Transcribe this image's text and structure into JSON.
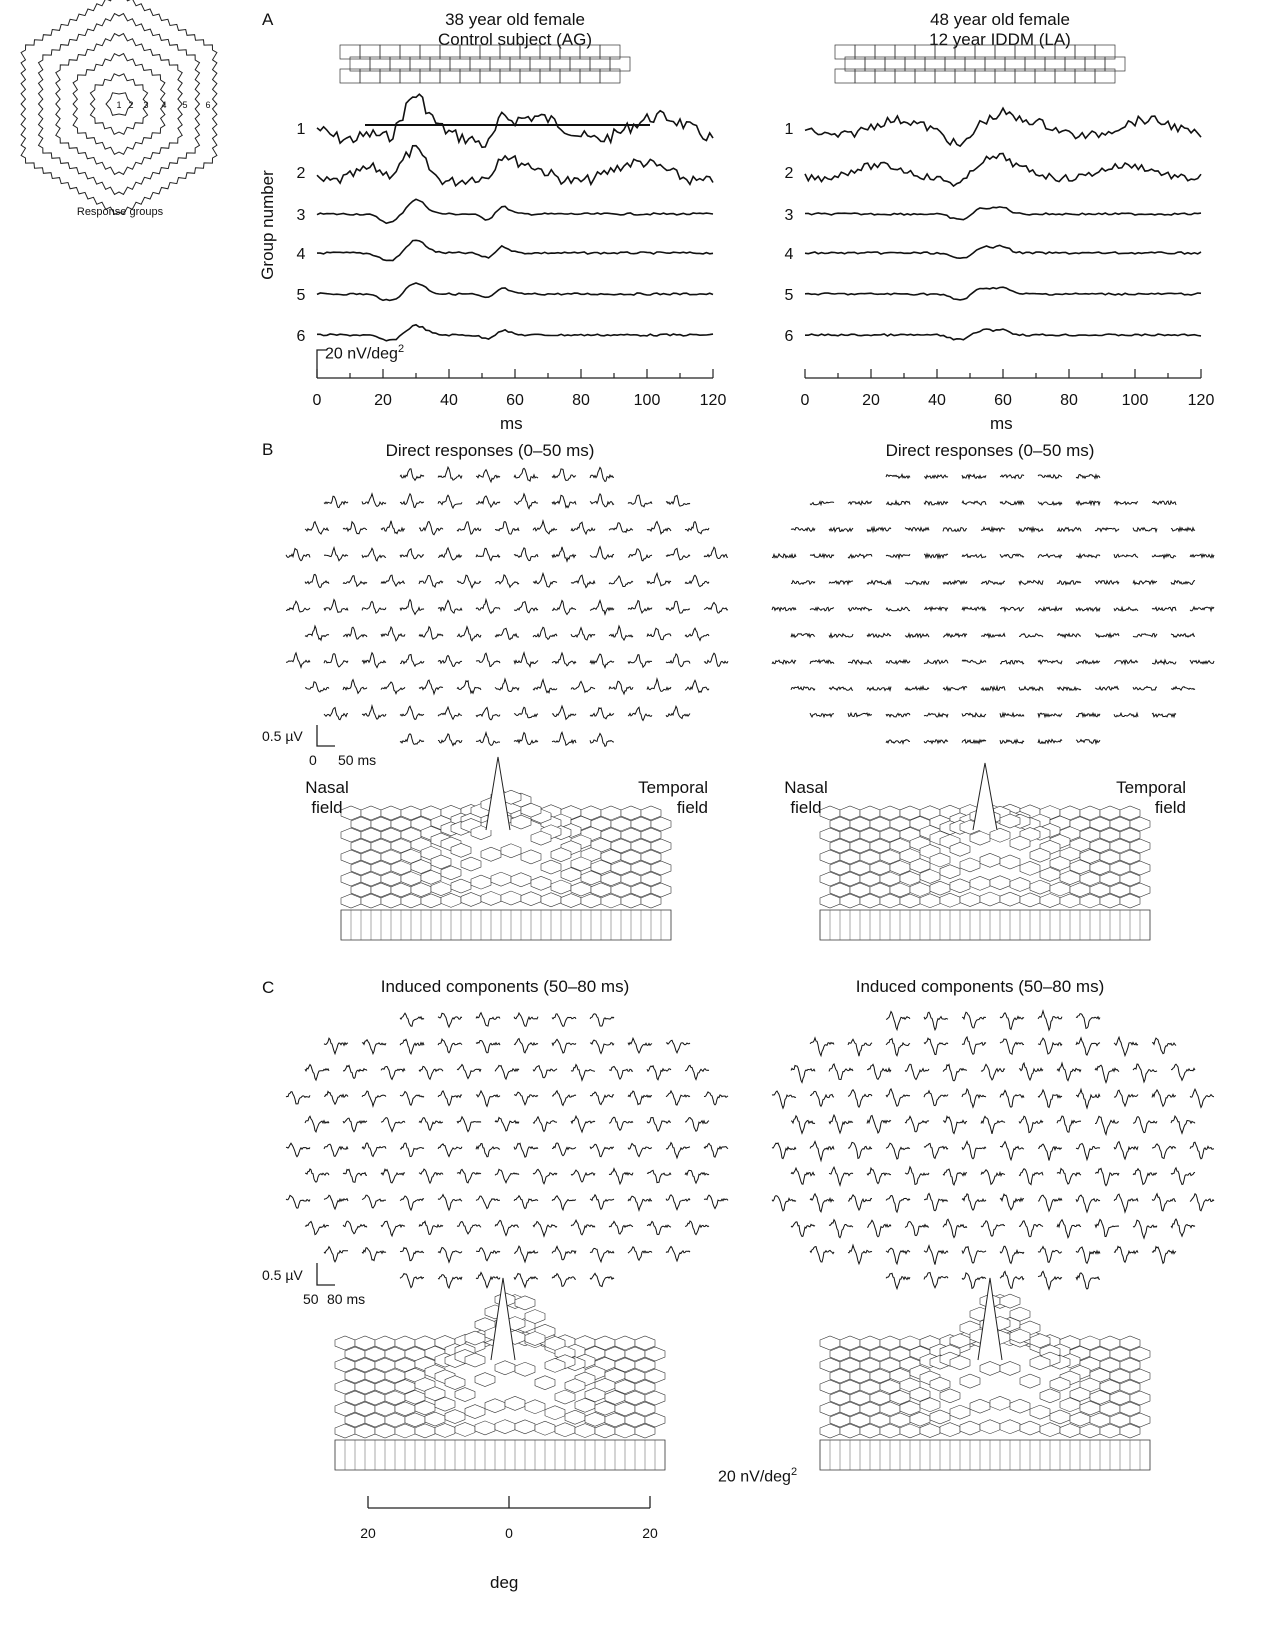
{
  "inset": {
    "label": "Response groups",
    "ring_numbers": [
      "1",
      "2",
      "3",
      "4",
      "5",
      "6"
    ]
  },
  "panels": {
    "A": {
      "letter": "A",
      "ylabel": "Group number",
      "xlabel": "ms",
      "scale_label": "20 nV/deg",
      "scale_sup": "2",
      "left": {
        "title1": "38 year old female",
        "title2": "Control subject (AG)"
      },
      "right": {
        "title1": "48 year old female",
        "title2": "12 year IDDM (LA)"
      },
      "group_labels": [
        "1",
        "2",
        "3",
        "4",
        "5",
        "6"
      ],
      "ticks": [
        "0",
        "20",
        "40",
        "60",
        "80",
        "100",
        "120"
      ]
    },
    "B": {
      "letter": "B",
      "title": "Direct responses (0–50 ms)",
      "scale_v": "0.5 µV",
      "scale_t0": "0",
      "scale_t1": "50 ms",
      "nasal": [
        "Nasal",
        "field"
      ],
      "temporal": [
        "Temporal",
        "field"
      ]
    },
    "C": {
      "letter": "C",
      "title": "Induced components (50–80 ms)",
      "scale_v": "0.5 µV",
      "scale_t0": "50",
      "scale_t1": "80 ms"
    }
  },
  "bottom": {
    "density_label": "20 nV/deg",
    "density_sup": "2",
    "xlabel": "deg",
    "ticks": [
      "20",
      "0",
      "20"
    ]
  },
  "chart_data": {
    "type": "line",
    "title": "",
    "xlabel": "ms",
    "ylabel": "Group number",
    "xlim": [
      0,
      120
    ],
    "x_ticks": [
      0,
      20,
      40,
      60,
      80,
      100,
      120
    ],
    "categories": [
      "1",
      "2",
      "3",
      "4",
      "5",
      "6"
    ],
    "series": [
      {
        "name": "38 year old female Control subject (AG)",
        "peaks_ms": [
          30,
          57
        ]
      },
      {
        "name": "48 year old female 12 year IDDM (LA)",
        "peaks_ms": [
          55,
          58
        ]
      }
    ]
  }
}
